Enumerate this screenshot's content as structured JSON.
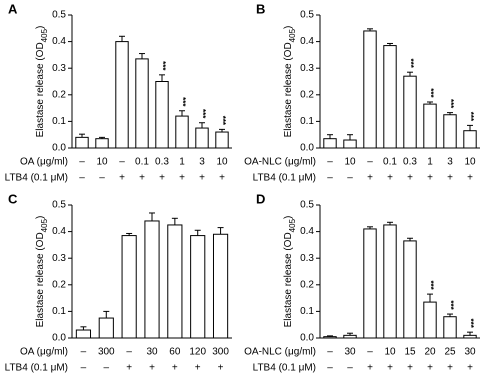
{
  "chart_data": [
    {
      "type": "bar",
      "panel": "A",
      "ylabel": [
        "Elastase release (OD",
        "405",
        ")"
      ],
      "ylim": [
        0,
        0.5
      ],
      "yticks": [
        {
          "value": 0,
          "label": "0.0"
        },
        0.1,
        0.2,
        0.3,
        0.4,
        0.5
      ],
      "values": [
        0.04,
        0.035,
        0.4,
        0.335,
        0.25,
        0.12,
        0.075,
        0.06
      ],
      "errors": [
        0.012,
        0.005,
        0.02,
        0.02,
        0.025,
        0.02,
        0.02,
        0.01
      ],
      "value_labels": [
        null,
        null,
        null,
        null,
        "***",
        "***",
        "***",
        "***"
      ],
      "rows": [
        {
          "label": "OA (μg/ml)",
          "values": [
            "–",
            "10",
            "–",
            "0.1",
            "0.3",
            "1",
            "3",
            "10"
          ]
        },
        {
          "label": "LTB4 (0.1 μM)",
          "values": [
            "–",
            "–",
            "+",
            "+",
            "+",
            "+",
            "+",
            "+"
          ]
        }
      ]
    },
    {
      "type": "bar",
      "panel": "B",
      "ylabel": [
        "Elastase release (OD",
        "405",
        ")"
      ],
      "ylim": [
        0,
        0.5
      ],
      "yticks": [
        {
          "value": 0,
          "label": "0.0"
        },
        0.1,
        0.2,
        0.3,
        0.4,
        0.5
      ],
      "values": [
        0.035,
        0.03,
        0.44,
        0.385,
        0.27,
        0.165,
        0.125,
        0.065
      ],
      "errors": [
        0.015,
        0.02,
        0.008,
        0.008,
        0.015,
        0.008,
        0.008,
        0.02
      ],
      "value_labels": [
        null,
        null,
        null,
        null,
        "***",
        "***",
        "***",
        "***"
      ],
      "rows": [
        {
          "label": "OA-NLC (μg/ml)",
          "values": [
            "–",
            "10",
            "–",
            "0.1",
            "0.3",
            "1",
            "3",
            "10"
          ]
        },
        {
          "label": "LTB4 (0.1 μM)",
          "values": [
            "–",
            "–",
            "+",
            "+",
            "+",
            "+",
            "+",
            "+"
          ]
        }
      ]
    },
    {
      "type": "bar",
      "panel": "C",
      "ylabel": [
        "Elastase release (OD",
        "405",
        ")"
      ],
      "ylim": [
        0,
        0.5
      ],
      "yticks": [
        {
          "value": 0,
          "label": "0.0"
        },
        0.1,
        0.2,
        0.3,
        0.4,
        0.5
      ],
      "values": [
        0.03,
        0.075,
        0.385,
        0.44,
        0.425,
        0.385,
        0.39
      ],
      "errors": [
        0.012,
        0.025,
        0.008,
        0.03,
        0.025,
        0.02,
        0.025
      ],
      "value_labels": [
        null,
        null,
        null,
        null,
        null,
        null,
        null
      ],
      "rows": [
        {
          "label": "OA (μg/ml)",
          "values": [
            "–",
            "300",
            "–",
            "30",
            "60",
            "120",
            "300"
          ]
        },
        {
          "label": "LTB4 (0.1 μM)",
          "values": [
            "–",
            "–",
            "+",
            "+",
            "+",
            "+",
            "+"
          ]
        }
      ]
    },
    {
      "type": "bar",
      "panel": "D",
      "ylabel": [
        "Elastase release (OD",
        "405",
        ")"
      ],
      "ylim": [
        0,
        0.5
      ],
      "yticks": [
        {
          "value": 0,
          "label": "0.0"
        },
        0.1,
        0.2,
        0.3,
        0.4,
        0.5
      ],
      "values": [
        0.005,
        0.01,
        0.41,
        0.425,
        0.365,
        0.135,
        0.08,
        0.01
      ],
      "errors": [
        0.003,
        0.008,
        0.008,
        0.01,
        0.01,
        0.03,
        0.01,
        0.012
      ],
      "value_labels": [
        null,
        null,
        null,
        null,
        null,
        "***",
        "***",
        "***"
      ],
      "rows": [
        {
          "label": "OA-NLC (μg/ml)",
          "values": [
            "–",
            "30",
            "–",
            "10",
            "15",
            "20",
            "25",
            "30"
          ]
        },
        {
          "label": "LTB4 (0.1 μM)",
          "values": [
            "–",
            "–",
            "+",
            "+",
            "+",
            "+",
            "+",
            "+"
          ]
        }
      ]
    }
  ]
}
